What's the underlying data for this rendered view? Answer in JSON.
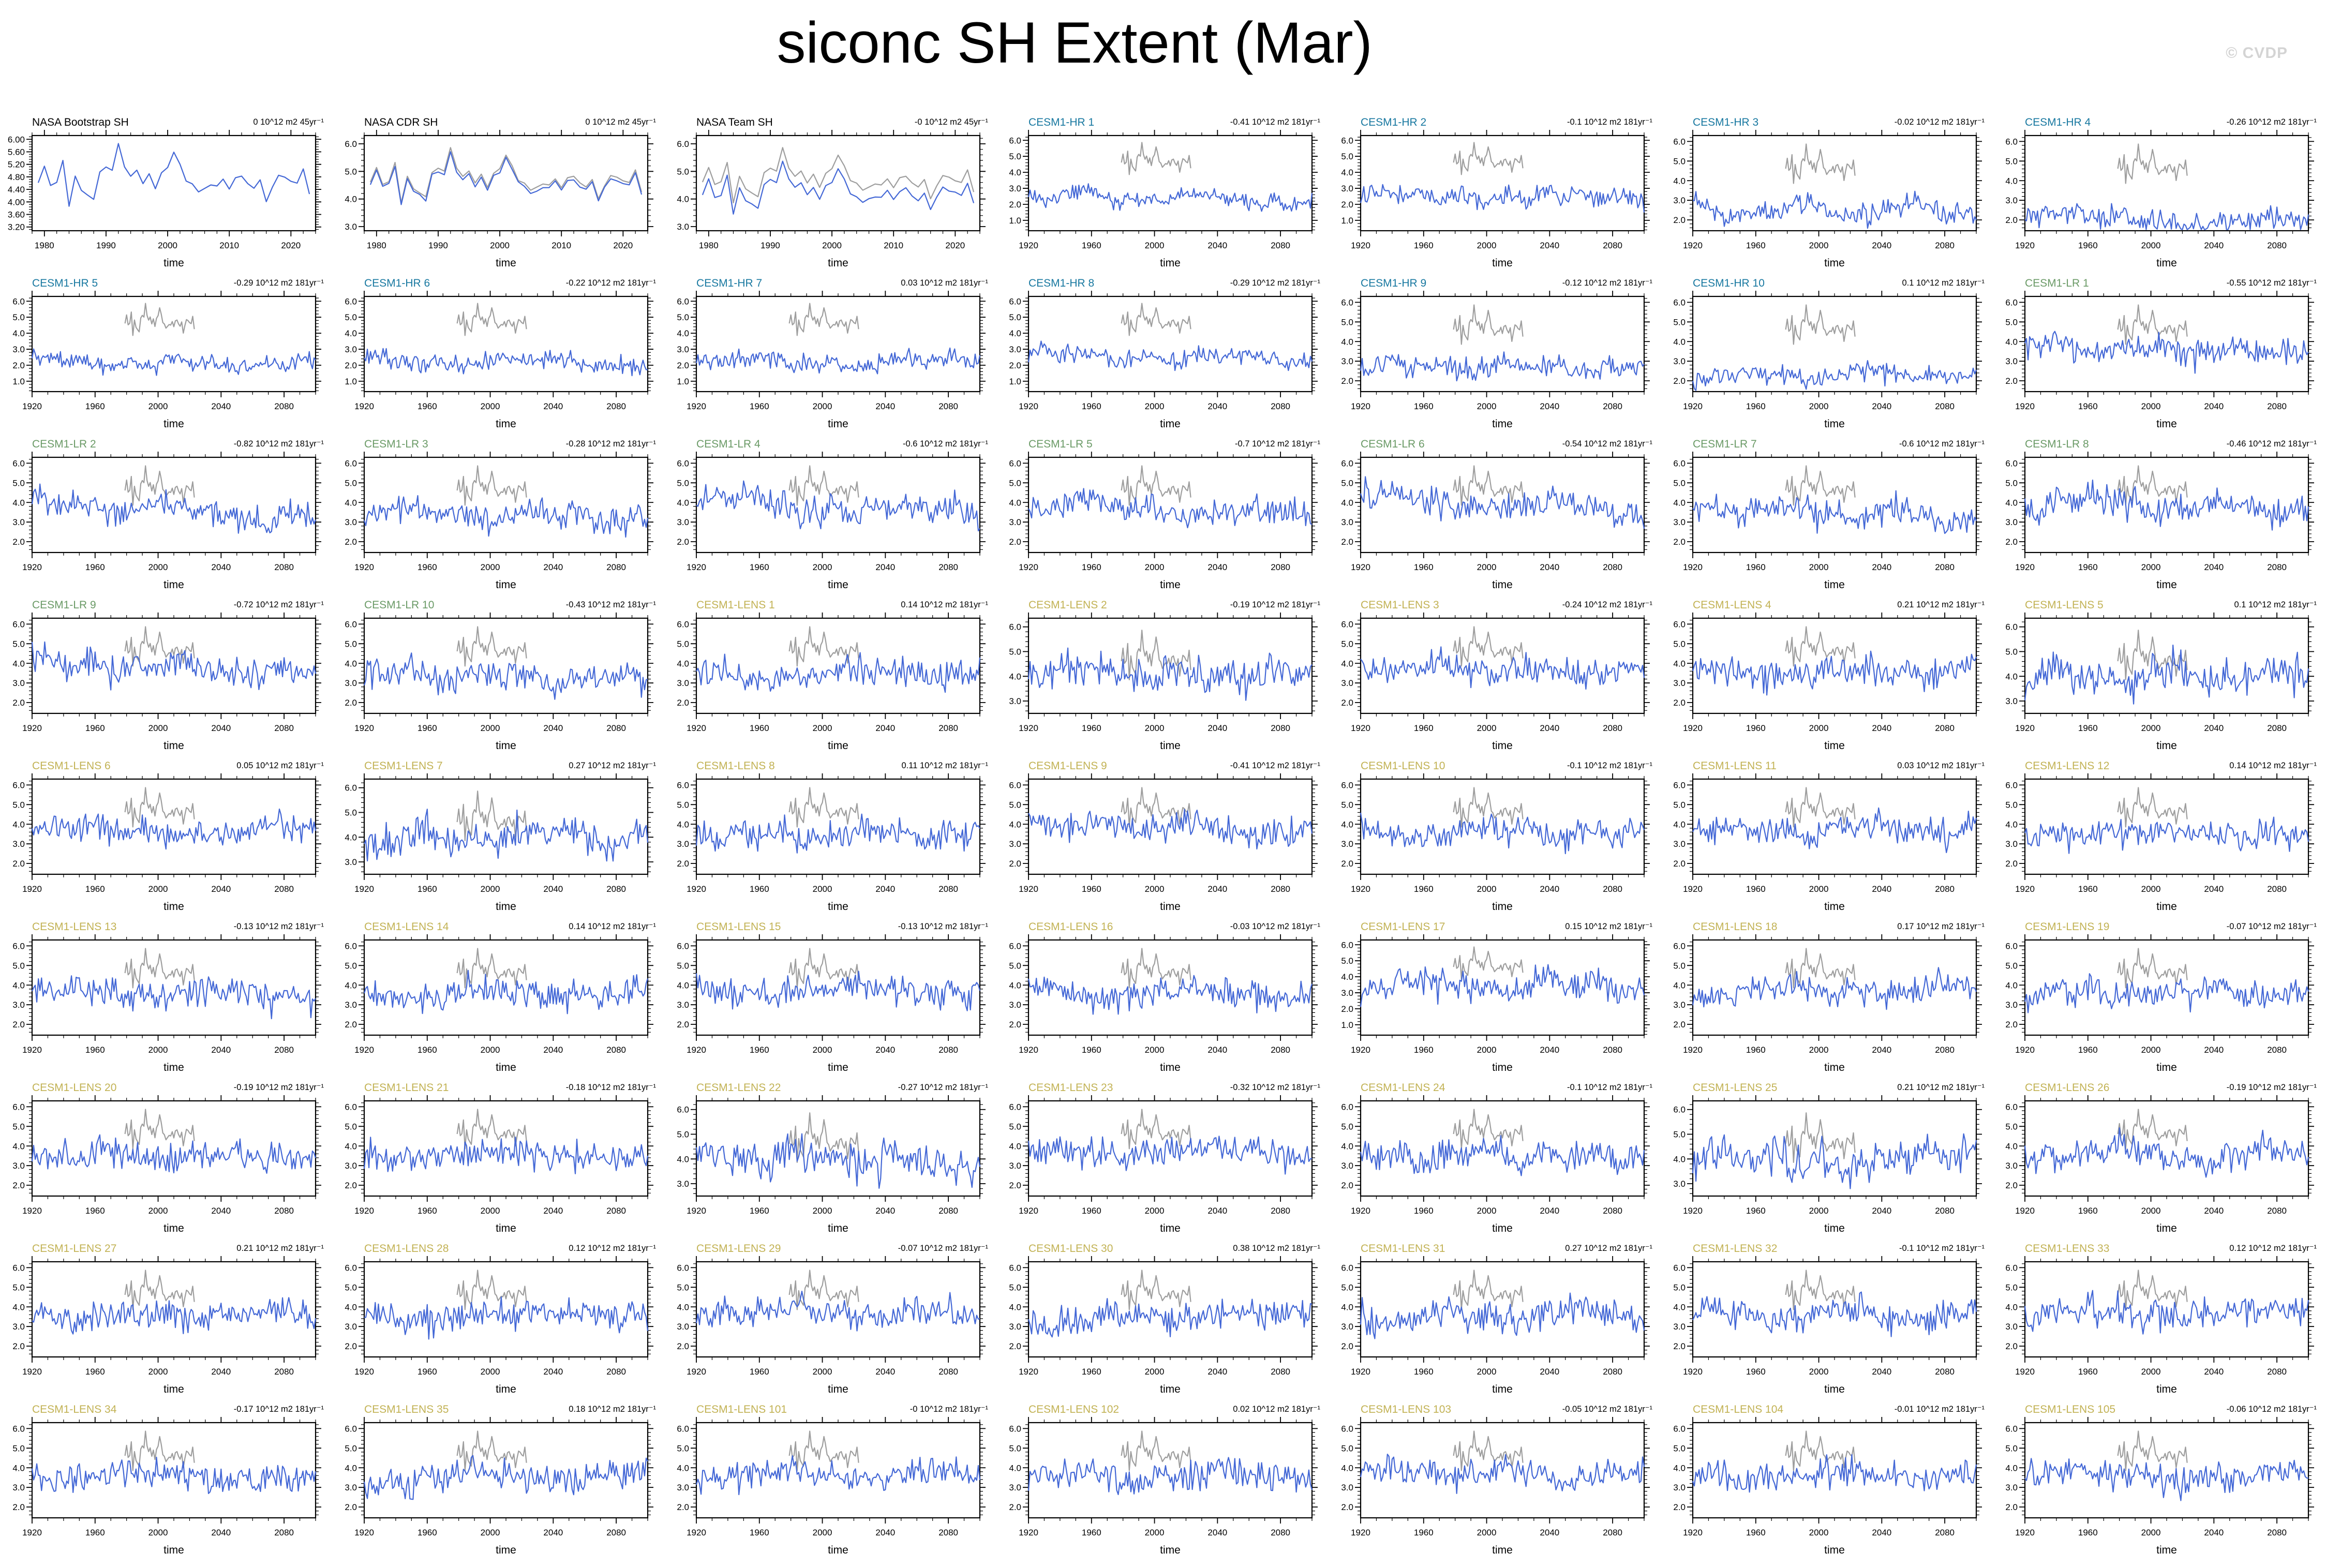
{
  "title": "siconc SH Extent (Mar)",
  "watermark": "© CVDP",
  "colors": {
    "series_blue": "#4468d6",
    "obs_overlay_gray": "#9e9e9e",
    "group_obs": "#000000",
    "group_hr": "#1878a0",
    "group_lr": "#6a9a66",
    "group_lens": "#c2b254",
    "axis": "#000000",
    "watermark": "#d4d4d4",
    "background": "#ffffff"
  },
  "chart_data": {
    "type": "line",
    "grid": {
      "rows": 9,
      "cols": 7
    },
    "xlabel": "time",
    "axes": {
      "x": {
        "obs": {
          "min": 1978,
          "max": 2024,
          "majors": [
            1980,
            1990,
            2000,
            2010,
            2020
          ],
          "minor_step": 2
        },
        "model": {
          "min": 1920,
          "max": 2100,
          "majors": [
            1920,
            1960,
            2000,
            2040,
            2080
          ],
          "minor_step": 10
        }
      },
      "y": {
        "obs40": {
          "min": 3.08,
          "max": 6.12,
          "ticks": [
            3.2,
            3.6,
            4.0,
            4.4,
            4.8,
            5.2,
            5.6,
            6.0
          ],
          "decimals": 2,
          "minor_step": 0.08
        },
        "obs10": {
          "min": 2.85,
          "max": 6.3,
          "ticks": [
            3.0,
            4.0,
            5.0,
            6.0
          ],
          "decimals": 1,
          "minor_step": 0.2
        },
        "y1": {
          "min": 0.35,
          "max": 6.3,
          "ticks": [
            1.0,
            2.0,
            3.0,
            4.0,
            5.0,
            6.0
          ],
          "decimals": 1,
          "minor_step": 0.2
        },
        "y2": {
          "min": 1.45,
          "max": 6.3,
          "ticks": [
            2.0,
            3.0,
            4.0,
            5.0,
            6.0
          ],
          "decimals": 1,
          "minor_step": 0.2
        },
        "y3": {
          "min": 2.5,
          "max": 6.35,
          "ticks": [
            3.0,
            4.0,
            5.0,
            6.0
          ],
          "decimals": 1,
          "minor_step": 0.2
        }
      }
    },
    "obs_overlay": {
      "x_start": 1979,
      "x_end": 2023,
      "n": 45,
      "base": 4.72,
      "amp": 0.5,
      "note": "NASA obs SH extent 1979-2023, drawn gray on every model panel"
    },
    "group_amp": {
      "obs": 0.45,
      "hr": 0.42,
      "lr": 0.55,
      "lens": 0.55
    },
    "panels": [
      {
        "name": "NASA Bootstrap SH",
        "group": "obs",
        "trend": "0 10^12 m2 45yr⁻¹",
        "yticks": "obs40",
        "base": 4.72,
        "shift": 0,
        "overlay": false
      },
      {
        "name": "NASA CDR SH",
        "group": "obs",
        "trend": "0 10^12 m2 45yr⁻¹",
        "yticks": "obs10",
        "base": 4.72,
        "shift": -0.1,
        "overlay": true
      },
      {
        "name": "NASA Team SH",
        "group": "obs",
        "trend": "-0 10^12 m2 45yr⁻¹",
        "yticks": "obs10",
        "base": 4.72,
        "shift": -0.45,
        "overlay": true
      },
      {
        "name": "CESM1-HR 1",
        "group": "hr",
        "trend": "-0.41 10^12 m2 181yr⁻¹",
        "yticks": "y1",
        "base": 2.4,
        "overlay": true
      },
      {
        "name": "CESM1-HR 2",
        "group": "hr",
        "trend": "-0.1 10^12 m2 181yr⁻¹",
        "yticks": "y1",
        "base": 2.5,
        "overlay": true
      },
      {
        "name": "CESM1-HR 3",
        "group": "hr",
        "trend": "-0.02 10^12 m2 181yr⁻¹",
        "yticks": "y2",
        "base": 2.5,
        "overlay": true
      },
      {
        "name": "CESM1-HR 4",
        "group": "hr",
        "trend": "-0.26 10^12 m2 181yr⁻¹",
        "yticks": "y2",
        "base": 2.0,
        "overlay": true
      },
      {
        "name": "CESM1-HR 5",
        "group": "hr",
        "trend": "-0.29 10^12 m2 181yr⁻¹",
        "yticks": "y1",
        "base": 2.1,
        "overlay": true
      },
      {
        "name": "CESM1-HR 6",
        "group": "hr",
        "trend": "-0.22 10^12 m2 181yr⁻¹",
        "yticks": "y1",
        "base": 2.2,
        "overlay": true
      },
      {
        "name": "CESM1-HR 7",
        "group": "hr",
        "trend": "0.03 10^12 m2 181yr⁻¹",
        "yticks": "y1",
        "base": 2.2,
        "overlay": true
      },
      {
        "name": "CESM1-HR 8",
        "group": "hr",
        "trend": "-0.29 10^12 m2 181yr⁻¹",
        "yticks": "y1",
        "base": 2.5,
        "overlay": true
      },
      {
        "name": "CESM1-HR 9",
        "group": "hr",
        "trend": "-0.12 10^12 m2 181yr⁻¹",
        "yticks": "y2",
        "base": 2.7,
        "overlay": true
      },
      {
        "name": "CESM1-HR 10",
        "group": "hr",
        "trend": "0.1 10^12 m2 181yr⁻¹",
        "yticks": "y2",
        "base": 2.3,
        "overlay": true
      },
      {
        "name": "CESM1-LR 1",
        "group": "lr",
        "trend": "-0.55 10^12 m2 181yr⁻¹",
        "yticks": "y2",
        "base": 3.6,
        "overlay": true
      },
      {
        "name": "CESM1-LR 2",
        "group": "lr",
        "trend": "-0.82 10^12 m2 181yr⁻¹",
        "yticks": "y2",
        "base": 3.6,
        "overlay": true
      },
      {
        "name": "CESM1-LR 3",
        "group": "lr",
        "trend": "-0.28 10^12 m2 181yr⁻¹",
        "yticks": "y2",
        "base": 3.4,
        "overlay": true
      },
      {
        "name": "CESM1-LR 4",
        "group": "lr",
        "trend": "-0.6 10^12 m2 181yr⁻¹",
        "yticks": "y2",
        "base": 3.7,
        "overlay": true
      },
      {
        "name": "CESM1-LR 5",
        "group": "lr",
        "trend": "-0.7 10^12 m2 181yr⁻¹",
        "yticks": "y2",
        "base": 3.6,
        "overlay": true
      },
      {
        "name": "CESM1-LR 6",
        "group": "lr",
        "trend": "-0.54 10^12 m2 181yr⁻¹",
        "yticks": "y2",
        "base": 3.9,
        "overlay": true
      },
      {
        "name": "CESM1-LR 7",
        "group": "lr",
        "trend": "-0.6 10^12 m2 181yr⁻¹",
        "yticks": "y2",
        "base": 3.5,
        "overlay": true
      },
      {
        "name": "CESM1-LR 8",
        "group": "lr",
        "trend": "-0.46 10^12 m2 181yr⁻¹",
        "yticks": "y2",
        "base": 3.8,
        "overlay": true
      },
      {
        "name": "CESM1-LR 9",
        "group": "lr",
        "trend": "-0.72 10^12 m2 181yr⁻¹",
        "yticks": "y2",
        "base": 3.8,
        "overlay": true
      },
      {
        "name": "CESM1-LR 10",
        "group": "lr",
        "trend": "-0.43 10^12 m2 181yr⁻¹",
        "yticks": "y2",
        "base": 3.3,
        "overlay": true
      },
      {
        "name": "CESM1-LENS 1",
        "group": "lens",
        "trend": "0.14 10^12 m2 181yr⁻¹",
        "yticks": "y2",
        "base": 3.5,
        "overlay": true
      },
      {
        "name": "CESM1-LENS 2",
        "group": "lens",
        "trend": "-0.19 10^12 m2 181yr⁻¹",
        "yticks": "y3",
        "base": 4.1,
        "overlay": true
      },
      {
        "name": "CESM1-LENS 3",
        "group": "lens",
        "trend": "-0.24 10^12 m2 181yr⁻¹",
        "yticks": "y2",
        "base": 3.7,
        "overlay": true
      },
      {
        "name": "CESM1-LENS 4",
        "group": "lens",
        "trend": "0.21 10^12 m2 181yr⁻¹",
        "yticks": "y2",
        "base": 3.6,
        "overlay": true
      },
      {
        "name": "CESM1-LENS 5",
        "group": "lens",
        "trend": "0.1 10^12 m2 181yr⁻¹",
        "yticks": "y3",
        "base": 4.0,
        "overlay": true
      },
      {
        "name": "CESM1-LENS 6",
        "group": "lens",
        "trend": "0.05 10^12 m2 181yr⁻¹",
        "yticks": "y2",
        "base": 3.6,
        "overlay": true
      },
      {
        "name": "CESM1-LENS 7",
        "group": "lens",
        "trend": "0.27 10^12 m2 181yr⁻¹",
        "yticks": "y3",
        "base": 4.0,
        "overlay": true
      },
      {
        "name": "CESM1-LENS 8",
        "group": "lens",
        "trend": "0.11 10^12 m2 181yr⁻¹",
        "yticks": "y2",
        "base": 3.5,
        "overlay": true
      },
      {
        "name": "CESM1-LENS 9",
        "group": "lens",
        "trend": "-0.41 10^12 m2 181yr⁻¹",
        "yticks": "y2",
        "base": 3.8,
        "overlay": true
      },
      {
        "name": "CESM1-LENS 10",
        "group": "lens",
        "trend": "-0.1 10^12 m2 181yr⁻¹",
        "yticks": "y2",
        "base": 3.6,
        "overlay": true
      },
      {
        "name": "CESM1-LENS 11",
        "group": "lens",
        "trend": "0.03 10^12 m2 181yr⁻¹",
        "yticks": "y2",
        "base": 3.7,
        "overlay": true
      },
      {
        "name": "CESM1-LENS 12",
        "group": "lens",
        "trend": "0.14 10^12 m2 181yr⁻¹",
        "yticks": "y2",
        "base": 3.5,
        "overlay": true
      },
      {
        "name": "CESM1-LENS 13",
        "group": "lens",
        "trend": "-0.13 10^12 m2 181yr⁻¹",
        "yticks": "y2",
        "base": 3.6,
        "overlay": true
      },
      {
        "name": "CESM1-LENS 14",
        "group": "lens",
        "trend": "0.14 10^12 m2 181yr⁻¹",
        "yticks": "y2",
        "base": 3.6,
        "overlay": true
      },
      {
        "name": "CESM1-LENS 15",
        "group": "lens",
        "trend": "-0.13 10^12 m2 181yr⁻¹",
        "yticks": "y2",
        "base": 3.7,
        "overlay": true
      },
      {
        "name": "CESM1-LENS 16",
        "group": "lens",
        "trend": "-0.03 10^12 m2 181yr⁻¹",
        "yticks": "y2",
        "base": 3.6,
        "overlay": true
      },
      {
        "name": "CESM1-LENS 17",
        "group": "lens",
        "trend": "0.15 10^12 m2 181yr⁻¹",
        "yticks": "y1",
        "base": 3.4,
        "amp": 0.75,
        "overlay": true
      },
      {
        "name": "CESM1-LENS 18",
        "group": "lens",
        "trend": "0.17 10^12 m2 181yr⁻¹",
        "yticks": "y2",
        "base": 3.7,
        "overlay": true
      },
      {
        "name": "CESM1-LENS 19",
        "group": "lens",
        "trend": "-0.07 10^12 m2 181yr⁻¹",
        "yticks": "y2",
        "base": 3.6,
        "overlay": true
      },
      {
        "name": "CESM1-LENS 20",
        "group": "lens",
        "trend": "-0.19 10^12 m2 181yr⁻¹",
        "yticks": "y2",
        "base": 3.5,
        "overlay": true
      },
      {
        "name": "CESM1-LENS 21",
        "group": "lens",
        "trend": "-0.18 10^12 m2 181yr⁻¹",
        "yticks": "y2",
        "base": 3.6,
        "overlay": true
      },
      {
        "name": "CESM1-LENS 22",
        "group": "lens",
        "trend": "-0.27 10^12 m2 181yr⁻¹",
        "yticks": "y3",
        "base": 4.0,
        "overlay": true
      },
      {
        "name": "CESM1-LENS 23",
        "group": "lens",
        "trend": "-0.32 10^12 m2 181yr⁻¹",
        "yticks": "y2",
        "base": 3.7,
        "overlay": true
      },
      {
        "name": "CESM1-LENS 24",
        "group": "lens",
        "trend": "-0.1 10^12 m2 181yr⁻¹",
        "yticks": "y2",
        "base": 3.5,
        "overlay": true
      },
      {
        "name": "CESM1-LENS 25",
        "group": "lens",
        "trend": "0.21 10^12 m2 181yr⁻¹",
        "yticks": "y3",
        "base": 4.0,
        "overlay": true
      },
      {
        "name": "CESM1-LENS 26",
        "group": "lens",
        "trend": "-0.19 10^12 m2 181yr⁻¹",
        "yticks": "y2",
        "base": 3.6,
        "overlay": true
      },
      {
        "name": "CESM1-LENS 27",
        "group": "lens",
        "trend": "0.21 10^12 m2 181yr⁻¹",
        "yticks": "y2",
        "base": 3.6,
        "overlay": true
      },
      {
        "name": "CESM1-LENS 28",
        "group": "lens",
        "trend": "0.12 10^12 m2 181yr⁻¹",
        "yticks": "y2",
        "base": 3.6,
        "overlay": true
      },
      {
        "name": "CESM1-LENS 29",
        "group": "lens",
        "trend": "-0.07 10^12 m2 181yr⁻¹",
        "yticks": "y2",
        "base": 3.7,
        "overlay": true
      },
      {
        "name": "CESM1-LENS 30",
        "group": "lens",
        "trend": "0.38 10^12 m2 181yr⁻¹",
        "yticks": "y2",
        "base": 3.5,
        "overlay": true
      },
      {
        "name": "CESM1-LENS 31",
        "group": "lens",
        "trend": "0.27 10^12 m2 181yr⁻¹",
        "yticks": "y2",
        "base": 3.6,
        "overlay": true
      },
      {
        "name": "CESM1-LENS 32",
        "group": "lens",
        "trend": "-0.1 10^12 m2 181yr⁻¹",
        "yticks": "y2",
        "base": 3.6,
        "overlay": true
      },
      {
        "name": "CESM1-LENS 33",
        "group": "lens",
        "trend": "0.12 10^12 m2 181yr⁻¹",
        "yticks": "y2",
        "base": 3.7,
        "overlay": true
      },
      {
        "name": "CESM1-LENS 34",
        "group": "lens",
        "trend": "-0.17 10^12 m2 181yr⁻¹",
        "yticks": "y2",
        "base": 3.6,
        "overlay": true
      },
      {
        "name": "CESM1-LENS 35",
        "group": "lens",
        "trend": "0.18 10^12 m2 181yr⁻¹",
        "yticks": "y2",
        "base": 3.5,
        "overlay": true
      },
      {
        "name": "CESM1-LENS 101",
        "group": "lens",
        "trend": "-0 10^12 m2 181yr⁻¹",
        "yticks": "y2",
        "base": 3.6,
        "overlay": true
      },
      {
        "name": "CESM1-LENS 102",
        "group": "lens",
        "trend": "0.02 10^12 m2 181yr⁻¹",
        "yticks": "y2",
        "base": 3.6,
        "overlay": true
      },
      {
        "name": "CESM1-LENS 103",
        "group": "lens",
        "trend": "-0.05 10^12 m2 181yr⁻¹",
        "yticks": "y2",
        "base": 3.7,
        "overlay": true
      },
      {
        "name": "CESM1-LENS 104",
        "group": "lens",
        "trend": "-0.01 10^12 m2 181yr⁻¹",
        "yticks": "y2",
        "base": 3.6,
        "overlay": true
      },
      {
        "name": "CESM1-LENS 105",
        "group": "lens",
        "trend": "-0.06 10^12 m2 181yr⁻¹",
        "yticks": "y2",
        "base": 3.6,
        "overlay": true
      }
    ]
  }
}
